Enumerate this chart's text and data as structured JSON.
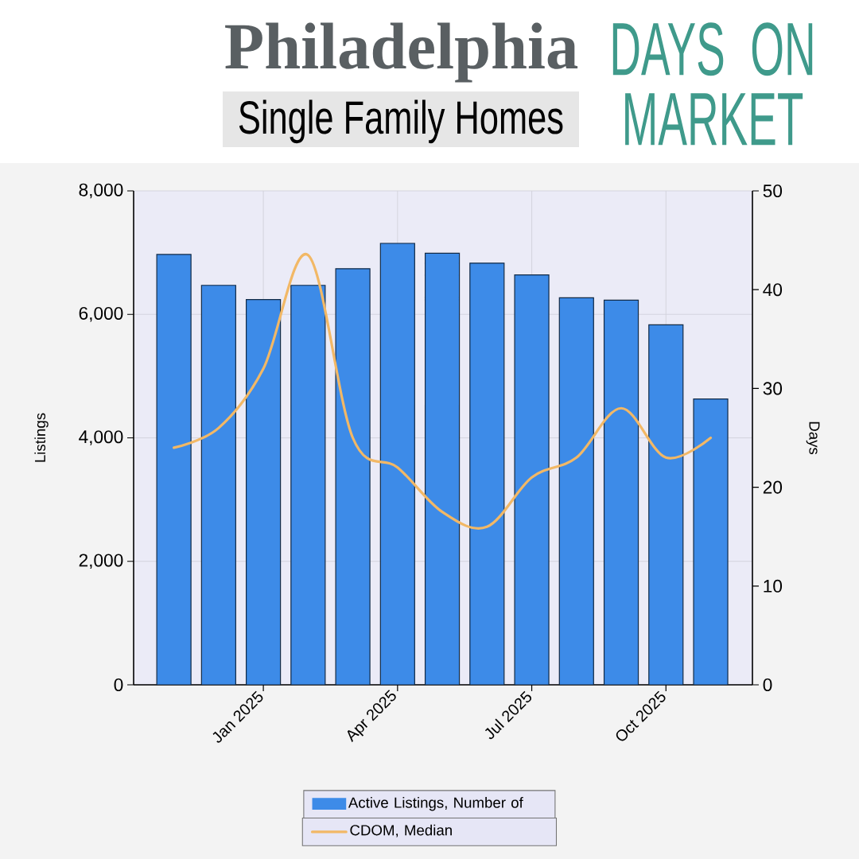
{
  "chart_data": {
    "type": "bar",
    "title": "Philadelphia",
    "subtitle": "Single Family Homes",
    "annotations": [
      "DAYS ON MARKET"
    ],
    "ylabel": "Listings",
    "y2label": "Days",
    "x": [
      "2024-11",
      "2024-12",
      "2025-01",
      "2025-02",
      "2025-03",
      "2025-04",
      "2025-05",
      "2025-06",
      "2025-07",
      "2025-08",
      "2025-09",
      "2025-10",
      "2025-11"
    ],
    "series": [
      {
        "name": "Active Listings, Number of",
        "color": "#3d8be8",
        "values": [
          6970,
          6470,
          6240,
          6470,
          6740,
          7150,
          6990,
          6830,
          6640,
          6270,
          6230,
          5830,
          4630
        ]
      },
      {
        "name": "CDOM, Median",
        "type": "line",
        "axis": "y2",
        "color": "#f2b866",
        "values": [
          24,
          26,
          32,
          43.5,
          25,
          22,
          17.5,
          16,
          21,
          23,
          28,
          23,
          25
        ]
      }
    ],
    "xlim": [
      "2024-10-04",
      "2025-11-29"
    ],
    "xticks": [
      {
        "value": "2025-01",
        "label": "Jan 2025"
      },
      {
        "value": "2025-04",
        "label": "Apr 2025"
      },
      {
        "value": "2025-07",
        "label": "Jul 2025"
      },
      {
        "value": "2025-10",
        "label": "Oct 2025"
      }
    ],
    "ylim": [
      0,
      8000
    ],
    "yticks": [
      0,
      {
        "value": 2000,
        "label": "2,000"
      },
      {
        "value": 4000,
        "label": "4,000"
      },
      {
        "value": 6000,
        "label": "6,000"
      },
      {
        "value": 8000,
        "label": "8,000"
      }
    ],
    "y2lim": [
      0,
      50
    ],
    "y2ticks": [
      0,
      10,
      20,
      30,
      40,
      50
    ],
    "grid": true,
    "legend": "bottom"
  }
}
